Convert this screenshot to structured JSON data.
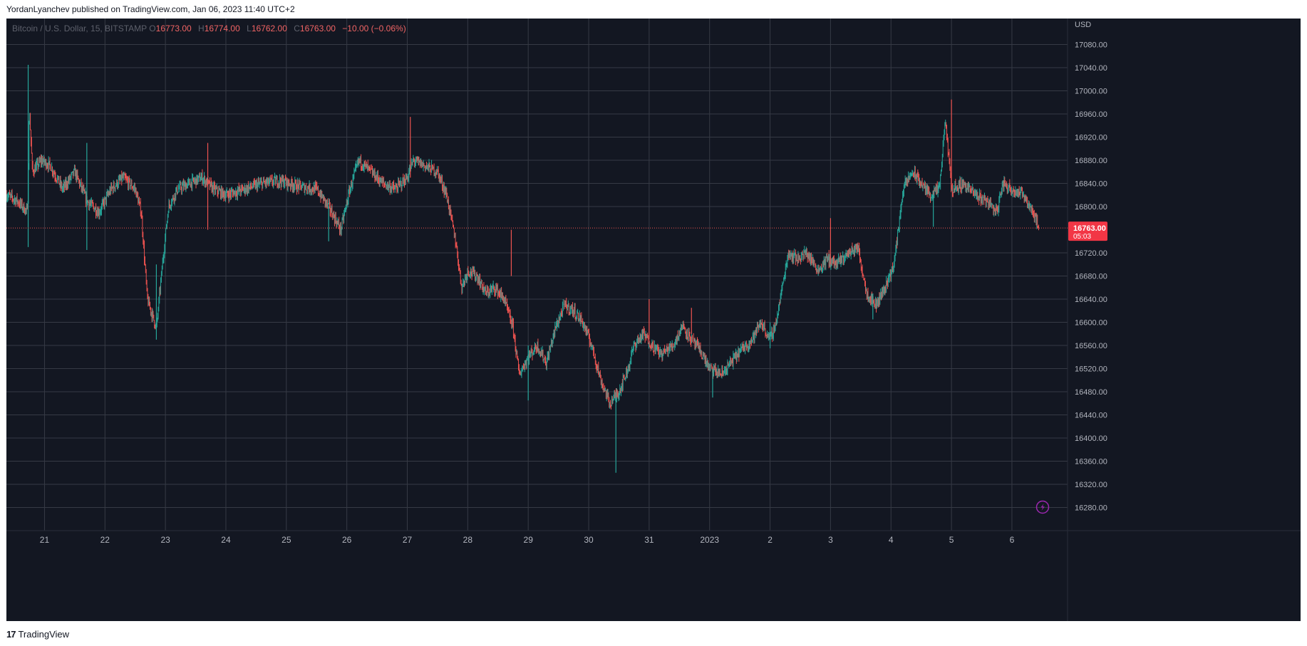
{
  "header": {
    "published_text": "YordanLyanchev published on TradingView.com, Jan 06, 2023 11:40 UTC+2"
  },
  "legend": {
    "symbol": "Bitcoin / U.S. Dollar, 15, BITSTAMP",
    "open_label": "O",
    "open": "16773.00",
    "high_label": "H",
    "high": "16774.00",
    "low_label": "L",
    "low": "16762.00",
    "close_label": "C",
    "close": "16763.00",
    "change": "−10.00 (−0.06%)"
  },
  "price_badge": {
    "price": "16763.00",
    "countdown": "05:03"
  },
  "footer": {
    "brand": "TradingView",
    "logo_glyph": "17"
  },
  "icons": {
    "lightning": "lightning-icon"
  },
  "colors": {
    "background": "#131722",
    "grid": "#363a45",
    "up": "#26a69a",
    "down": "#ef5350",
    "axis_text": "#b2b5be",
    "price_badge": "#f23645"
  },
  "chart_data": {
    "type": "candlestick",
    "symbol": "Bitcoin / U.S. Dollar",
    "interval": "15",
    "exchange": "BITSTAMP",
    "currency": "USD",
    "ylim": [
      16240,
      17125
    ],
    "y_ticks": [
      17080,
      17040,
      17000,
      16960,
      16920,
      16880,
      16840,
      16800,
      16720,
      16680,
      16640,
      16600,
      16560,
      16520,
      16480,
      16440,
      16400,
      16360,
      16320,
      16280
    ],
    "y_tick_labels": [
      "17080.00",
      "17040.00",
      "17000.00",
      "16960.00",
      "16920.00",
      "16880.00",
      "16840.00",
      "16800.00",
      "16720.00",
      "16680.00",
      "16640.00",
      "16600.00",
      "16560.00",
      "16520.00",
      "16480.00",
      "16440.00",
      "16400.00",
      "16360.00",
      "16320.00",
      "16280.00"
    ],
    "x_tick_labels": [
      "21",
      "22",
      "23",
      "24",
      "25",
      "26",
      "27",
      "28",
      "29",
      "30",
      "31",
      "2023",
      "2",
      "3",
      "4",
      "5",
      "6"
    ],
    "x_tick_days": [
      1,
      2,
      3,
      4,
      5,
      6,
      7,
      8,
      9,
      10,
      11,
      12,
      13,
      14,
      15,
      16,
      17
    ],
    "x_range_days": [
      0.37,
      17.92
    ],
    "last_price": 16763,
    "grid": true,
    "price_path": [
      [
        0.37,
        16820
      ],
      [
        0.55,
        16810
      ],
      [
        0.72,
        16790
      ],
      [
        0.75,
        16970
      ],
      [
        0.8,
        16860
      ],
      [
        0.95,
        16880
      ],
      [
        1.1,
        16870
      ],
      [
        1.3,
        16830
      ],
      [
        1.5,
        16860
      ],
      [
        1.7,
        16810
      ],
      [
        1.9,
        16790
      ],
      [
        2.1,
        16830
      ],
      [
        2.3,
        16850
      ],
      [
        2.5,
        16830
      ],
      [
        2.6,
        16790
      ],
      [
        2.7,
        16640
      ],
      [
        2.85,
        16590
      ],
      [
        2.95,
        16700
      ],
      [
        3.05,
        16800
      ],
      [
        3.2,
        16830
      ],
      [
        3.4,
        16840
      ],
      [
        3.6,
        16850
      ],
      [
        3.8,
        16830
      ],
      [
        4.0,
        16820
      ],
      [
        4.3,
        16830
      ],
      [
        4.6,
        16840
      ],
      [
        4.9,
        16845
      ],
      [
        5.2,
        16835
      ],
      [
        5.5,
        16830
      ],
      [
        5.7,
        16800
      ],
      [
        5.9,
        16760
      ],
      [
        6.05,
        16830
      ],
      [
        6.2,
        16880
      ],
      [
        6.4,
        16860
      ],
      [
        6.6,
        16840
      ],
      [
        6.8,
        16830
      ],
      [
        7.0,
        16850
      ],
      [
        7.1,
        16880
      ],
      [
        7.3,
        16870
      ],
      [
        7.5,
        16860
      ],
      [
        7.65,
        16820
      ],
      [
        7.8,
        16740
      ],
      [
        7.9,
        16660
      ],
      [
        8.0,
        16690
      ],
      [
        8.15,
        16680
      ],
      [
        8.3,
        16650
      ],
      [
        8.45,
        16660
      ],
      [
        8.6,
        16640
      ],
      [
        8.75,
        16590
      ],
      [
        8.85,
        16510
      ],
      [
        9.0,
        16540
      ],
      [
        9.15,
        16560
      ],
      [
        9.3,
        16530
      ],
      [
        9.45,
        16590
      ],
      [
        9.6,
        16630
      ],
      [
        9.75,
        16620
      ],
      [
        9.9,
        16600
      ],
      [
        10.05,
        16560
      ],
      [
        10.2,
        16500
      ],
      [
        10.35,
        16460
      ],
      [
        10.5,
        16480
      ],
      [
        10.65,
        16520
      ],
      [
        10.75,
        16560
      ],
      [
        10.9,
        16580
      ],
      [
        11.05,
        16560
      ],
      [
        11.2,
        16545
      ],
      [
        11.4,
        16560
      ],
      [
        11.55,
        16595
      ],
      [
        11.7,
        16570
      ],
      [
        11.85,
        16550
      ],
      [
        12.0,
        16520
      ],
      [
        12.2,
        16510
      ],
      [
        12.35,
        16530
      ],
      [
        12.5,
        16550
      ],
      [
        12.7,
        16570
      ],
      [
        12.85,
        16600
      ],
      [
        13.0,
        16570
      ],
      [
        13.1,
        16600
      ],
      [
        13.2,
        16660
      ],
      [
        13.3,
        16720
      ],
      [
        13.45,
        16710
      ],
      [
        13.6,
        16720
      ],
      [
        13.8,
        16690
      ],
      [
        13.95,
        16710
      ],
      [
        14.1,
        16700
      ],
      [
        14.3,
        16720
      ],
      [
        14.45,
        16730
      ],
      [
        14.6,
        16650
      ],
      [
        14.75,
        16630
      ],
      [
        14.9,
        16660
      ],
      [
        15.05,
        16700
      ],
      [
        15.2,
        16830
      ],
      [
        15.35,
        16860
      ],
      [
        15.5,
        16840
      ],
      [
        15.65,
        16820
      ],
      [
        15.8,
        16830
      ],
      [
        15.9,
        16950
      ],
      [
        16.0,
        16830
      ],
      [
        16.2,
        16840
      ],
      [
        16.4,
        16820
      ],
      [
        16.6,
        16810
      ],
      [
        16.75,
        16790
      ],
      [
        16.85,
        16840
      ],
      [
        17.0,
        16830
      ],
      [
        17.2,
        16820
      ],
      [
        17.35,
        16790
      ],
      [
        17.45,
        16763
      ]
    ],
    "spikes": [
      [
        0.73,
        16730,
        17045
      ],
      [
        1.7,
        16725,
        16910
      ],
      [
        2.85,
        16570,
        16700
      ],
      [
        3.7,
        16910,
        16760
      ],
      [
        5.7,
        16740,
        16800
      ],
      [
        7.05,
        16955,
        16850
      ],
      [
        8.72,
        16760,
        16680
      ],
      [
        9.0,
        16465,
        16560
      ],
      [
        10.45,
        16340,
        16470
      ],
      [
        11.0,
        16640,
        16570
      ],
      [
        11.7,
        16625,
        16580
      ],
      [
        12.05,
        16470,
        16520
      ],
      [
        13.0,
        16555,
        16600
      ],
      [
        14.0,
        16780,
        16700
      ],
      [
        14.7,
        16605,
        16650
      ],
      [
        16.0,
        16985,
        16830
      ],
      [
        15.7,
        16765,
        16820
      ]
    ]
  }
}
